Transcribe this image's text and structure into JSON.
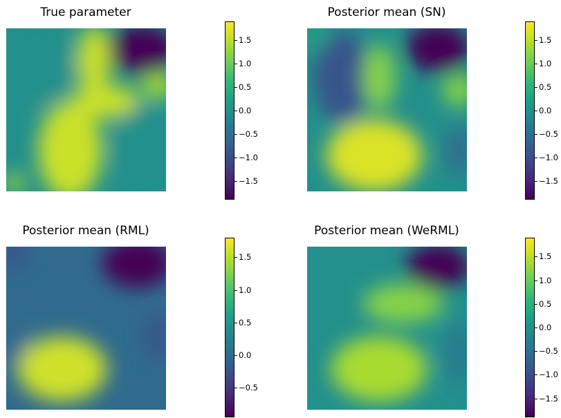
{
  "chart_data": [
    {
      "type": "heatmap",
      "title": "True parameter",
      "colormap": "viridis",
      "colorbar": {
        "min": -1.9,
        "max": 1.9,
        "ticks": [
          "1.5",
          "1.0",
          "0.5",
          "0.0",
          "−0.5",
          "−1.0",
          "−1.5"
        ]
      },
      "blobs": [
        {
          "cx": 0.18,
          "cy": 0.22,
          "rx": 0.25,
          "ry": 0.25,
          "v": 0.0
        },
        {
          "cx": 0.85,
          "cy": 0.13,
          "rx": 0.22,
          "ry": 0.15,
          "v": -1.9
        },
        {
          "cx": 0.4,
          "cy": 0.75,
          "rx": 0.2,
          "ry": 0.3,
          "v": 1.6
        },
        {
          "cx": 0.62,
          "cy": 0.45,
          "rx": 0.22,
          "ry": 0.1,
          "v": 1.6
        },
        {
          "cx": 0.55,
          "cy": 0.2,
          "rx": 0.1,
          "ry": 0.22,
          "v": 1.6
        },
        {
          "cx": 0.95,
          "cy": 0.35,
          "rx": 0.1,
          "ry": 0.08,
          "v": 1.4
        },
        {
          "cx": 0.85,
          "cy": 0.72,
          "rx": 0.18,
          "ry": 0.25,
          "v": 0.0
        },
        {
          "cx": 0.05,
          "cy": 0.95,
          "rx": 0.06,
          "ry": 0.06,
          "v": 1.4
        }
      ]
    },
    {
      "type": "heatmap",
      "title": "Posterior mean (SN)",
      "colormap": "viridis",
      "colorbar": {
        "min": -1.9,
        "max": 1.9,
        "ticks": [
          "1.5",
          "1.0",
          "0.5",
          "0.0",
          "−0.5",
          "−1.0",
          "−1.5"
        ]
      },
      "blobs": [
        {
          "cx": 0.22,
          "cy": 0.3,
          "rx": 0.18,
          "ry": 0.28,
          "v": -0.9
        },
        {
          "cx": 0.82,
          "cy": 0.12,
          "rx": 0.2,
          "ry": 0.15,
          "v": -1.9
        },
        {
          "cx": 0.42,
          "cy": 0.78,
          "rx": 0.3,
          "ry": 0.22,
          "v": 1.7
        },
        {
          "cx": 0.45,
          "cy": 0.3,
          "rx": 0.1,
          "ry": 0.2,
          "v": 1.2
        },
        {
          "cx": 0.95,
          "cy": 0.38,
          "rx": 0.1,
          "ry": 0.1,
          "v": 1.2
        },
        {
          "cx": 0.95,
          "cy": 0.75,
          "rx": 0.08,
          "ry": 0.15,
          "v": -0.6
        },
        {
          "cx": 0.05,
          "cy": 0.05,
          "rx": 0.08,
          "ry": 0.08,
          "v": 0.3
        }
      ]
    },
    {
      "type": "heatmap",
      "title": "Posterior mean (RML)",
      "colormap": "viridis",
      "colorbar": {
        "min": -0.95,
        "max": 1.8,
        "ticks": [
          "1.5",
          "1.0",
          "0.5",
          "0.0",
          "−0.5"
        ]
      },
      "blobs": [
        {
          "cx": 0.82,
          "cy": 0.1,
          "rx": 0.22,
          "ry": 0.15,
          "v": -0.95
        },
        {
          "cx": 0.05,
          "cy": 0.05,
          "rx": 0.1,
          "ry": 0.1,
          "v": -0.2
        },
        {
          "cx": 0.35,
          "cy": 0.75,
          "rx": 0.28,
          "ry": 0.2,
          "v": 1.6
        },
        {
          "cx": 0.95,
          "cy": 0.55,
          "rx": 0.1,
          "ry": 0.15,
          "v": -0.2
        },
        {
          "cx": 0.05,
          "cy": 0.6,
          "rx": 0.08,
          "ry": 0.12,
          "v": 0.0
        }
      ]
    },
    {
      "type": "heatmap",
      "title": "Posterior mean (WeRML)",
      "colormap": "viridis",
      "colorbar": {
        "min": -1.9,
        "max": 1.9,
        "ticks": [
          "1.5",
          "1.0",
          "0.5",
          "0.0",
          "−0.5",
          "−1.0",
          "−1.5"
        ]
      },
      "blobs": [
        {
          "cx": 0.82,
          "cy": 0.12,
          "rx": 0.2,
          "ry": 0.14,
          "v": -1.9
        },
        {
          "cx": 0.45,
          "cy": 0.75,
          "rx": 0.3,
          "ry": 0.2,
          "v": 1.4
        },
        {
          "cx": 0.6,
          "cy": 0.35,
          "rx": 0.25,
          "ry": 0.12,
          "v": 1.2
        },
        {
          "cx": 0.95,
          "cy": 0.65,
          "rx": 0.1,
          "ry": 0.2,
          "v": -0.3
        }
      ]
    }
  ]
}
